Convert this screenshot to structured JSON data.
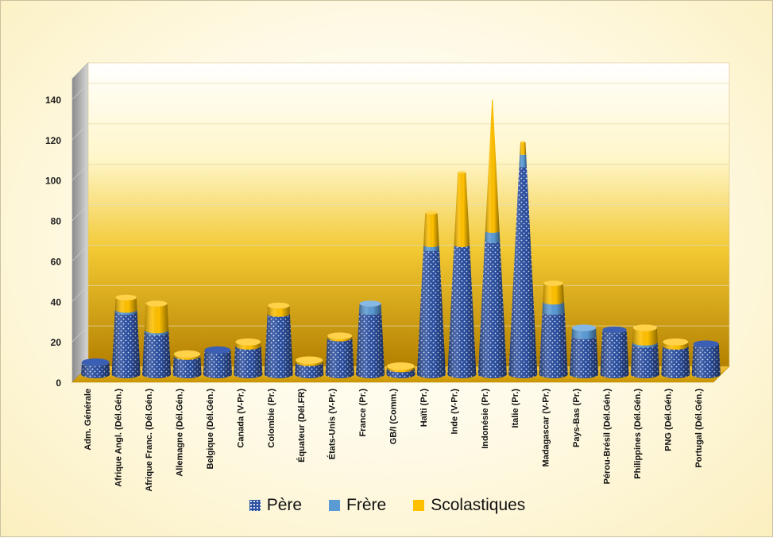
{
  "chart_data": {
    "type": "bar",
    "bar_shape": "cone",
    "stacked": true,
    "three_d": true,
    "title": "",
    "xlabel": "",
    "ylabel": "",
    "ylim": [
      0,
      140
    ],
    "yticks": [
      0,
      20,
      40,
      60,
      80,
      100,
      120,
      140
    ],
    "grid": true,
    "legend_position": "bottom",
    "categories": [
      "Adm. Générale",
      "Afrique Angl. (Dél.Gén.)",
      "Afrique Franc. (Dél.Gén.)",
      "Allemagne (Dél.Gén.)",
      "Belgique (Dél.Gén.)",
      "Canada (V-Pr.)",
      "Colombie (Pr.)",
      "Équateur (Dél.FR)",
      "États-Unis (V-Pr.)",
      "France (Pr.)",
      "GB/I (Comm.)",
      "Haïti (Pr.)",
      "Inde (V-Pr.)",
      "Indonésie (Pr.)",
      "Italie (Pr.)",
      "Madagascar (V-Pr.)",
      "Pays-Bas (Pr.)",
      "Pérou-Brésil (Dél.Gén.)",
      "Philippines (Dél.Gén.)",
      "PNG (Dél.Gén.)",
      "Portugal (Dél.Gén.)"
    ],
    "series": [
      {
        "name": "Père",
        "color": "#2b4fa0",
        "values": [
          6,
          31,
          21,
          9,
          12,
          14,
          30,
          6,
          18,
          31,
          3,
          62,
          64,
          66,
          103,
          31,
          19,
          22,
          15,
          14,
          15
        ]
      },
      {
        "name": "Frère",
        "color": "#5b9bd5",
        "values": [
          0,
          1,
          1,
          0,
          0,
          0,
          0,
          0,
          0,
          4,
          0,
          2,
          0,
          5,
          6,
          5,
          4,
          0,
          1,
          0,
          0
        ]
      },
      {
        "name": "Scolastiques",
        "color": "#ffc000",
        "values": [
          0,
          6,
          13,
          1,
          0,
          2,
          4,
          1,
          1,
          0,
          1,
          16,
          36,
          65,
          6,
          9,
          0,
          0,
          7,
          2,
          0
        ]
      }
    ]
  }
}
